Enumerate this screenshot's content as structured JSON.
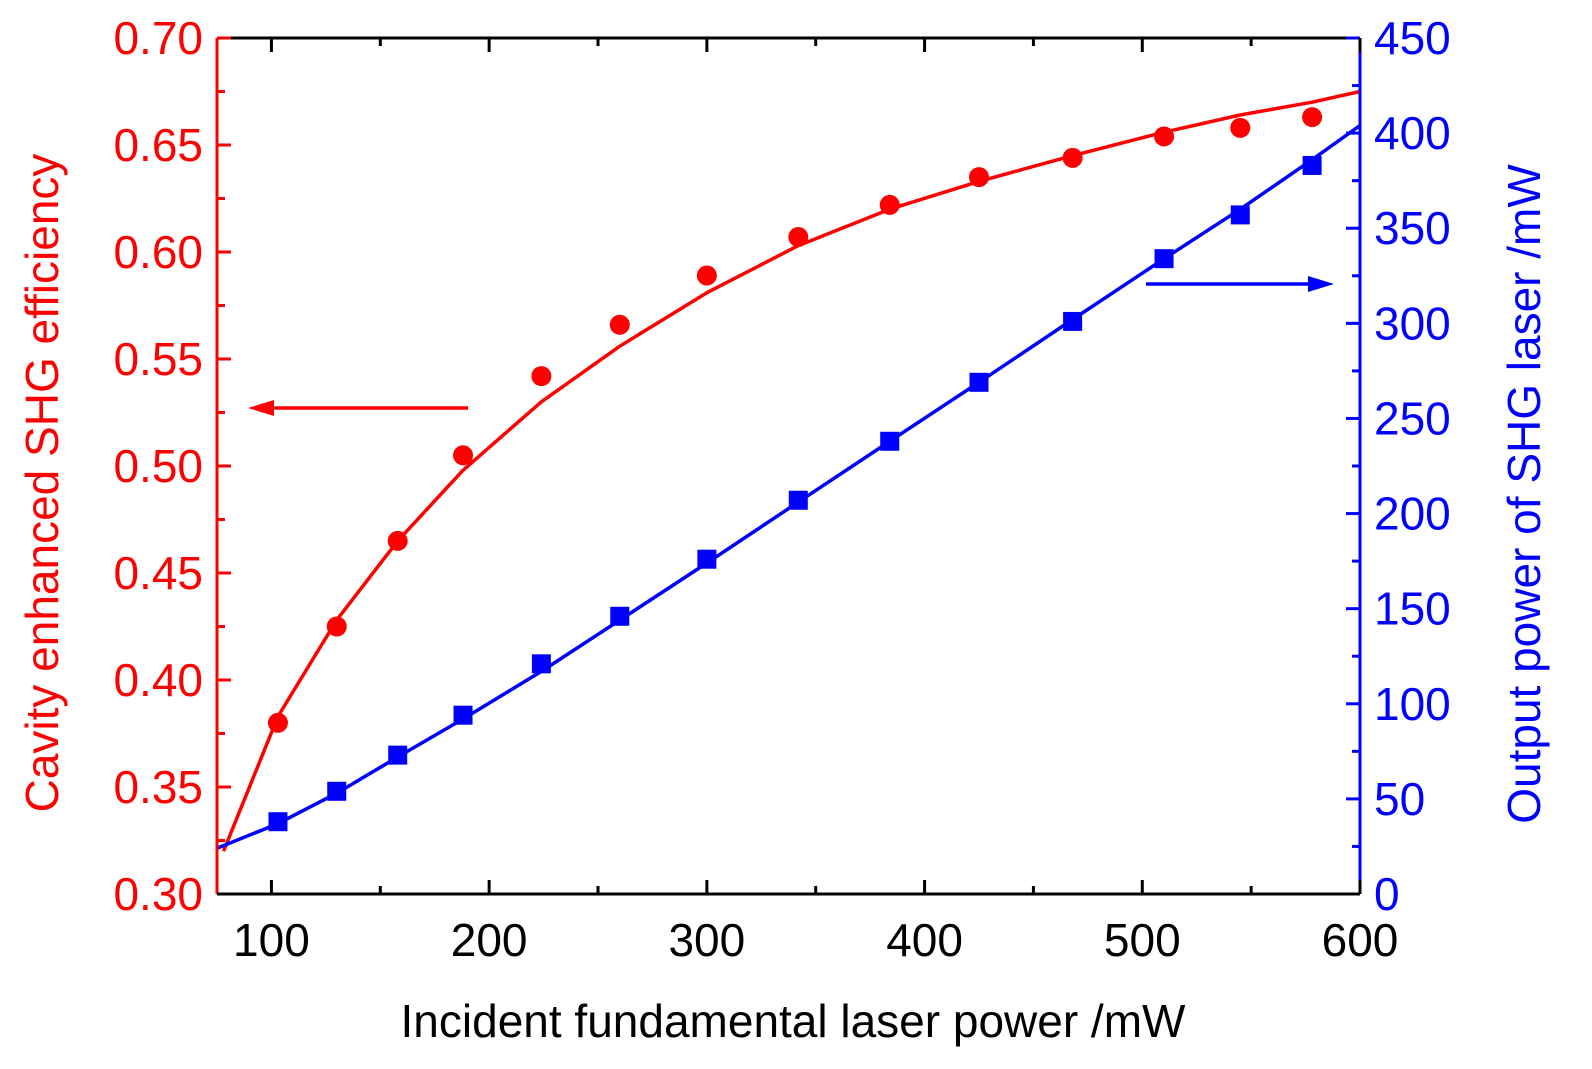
{
  "chart_data": {
    "type": "scatter",
    "title": "",
    "xlabel": "Incident fundamental laser power /mW",
    "xlim": [
      75,
      600
    ],
    "xticks": [
      100,
      200,
      300,
      400,
      500,
      600
    ],
    "xtick_labels": [
      "100",
      "200",
      "300",
      "400",
      "500",
      "600"
    ],
    "y_left": {
      "label": "Cavity enhanced SHG efficiency",
      "ylim": [
        0.3,
        0.7
      ],
      "ticks": [
        0.3,
        0.35,
        0.4,
        0.45,
        0.5,
        0.55,
        0.6,
        0.65,
        0.7
      ],
      "tick_labels": [
        "0.30",
        "0.35",
        "0.40",
        "0.45",
        "0.50",
        "0.55",
        "0.60",
        "0.65",
        "0.70"
      ],
      "color": "#ff0000"
    },
    "y_right": {
      "label": "Output power of SHG laser /mW",
      "ylim": [
        0,
        450
      ],
      "ticks": [
        0,
        50,
        100,
        150,
        200,
        250,
        300,
        350,
        400,
        450
      ],
      "tick_labels": [
        "0",
        "50",
        "100",
        "150",
        "200",
        "250",
        "300",
        "350",
        "400",
        "450"
      ],
      "color": "#0000ff"
    },
    "series": [
      {
        "name": "Cavity enhanced SHG efficiency",
        "axis": "left",
        "marker": "circle",
        "color": "#ff0000",
        "x": [
          103,
          130,
          158,
          188,
          224,
          260,
          300,
          342,
          384,
          425,
          468,
          510,
          545,
          578
        ],
        "y": [
          0.38,
          0.425,
          0.465,
          0.505,
          0.542,
          0.566,
          0.589,
          0.607,
          0.622,
          0.635,
          0.644,
          0.654,
          0.658,
          0.663
        ]
      },
      {
        "name": "Output power of SHG laser",
        "axis": "right",
        "marker": "square",
        "color": "#0000ff",
        "x": [
          103,
          130,
          158,
          188,
          224,
          260,
          300,
          342,
          384,
          425,
          468,
          510,
          545,
          578
        ],
        "y": [
          38,
          54,
          73,
          94,
          121,
          146,
          176,
          207,
          238,
          269,
          301,
          334,
          357,
          383
        ]
      }
    ],
    "fits": [
      {
        "name": "efficiency fit",
        "axis": "left",
        "color": "#ff0000",
        "x": [
          78,
          103,
          130,
          158,
          188,
          224,
          260,
          300,
          342,
          384,
          425,
          468,
          510,
          545,
          578,
          600
        ],
        "y": [
          0.32,
          0.383,
          0.428,
          0.465,
          0.498,
          0.53,
          0.556,
          0.581,
          0.603,
          0.62,
          0.633,
          0.645,
          0.656,
          0.664,
          0.67,
          0.675
        ]
      },
      {
        "name": "output power fit",
        "axis": "right",
        "color": "#0000ff",
        "x": [
          75,
          103,
          130,
          158,
          188,
          224,
          260,
          300,
          342,
          384,
          425,
          468,
          510,
          545,
          578,
          600
        ],
        "y": [
          24,
          37,
          53,
          72,
          92,
          117,
          144,
          174,
          206,
          238,
          269,
          302,
          334,
          360,
          386,
          404
        ]
      }
    ],
    "annotations": [
      {
        "type": "arrow",
        "points_to": "left axis",
        "color": "#ff0000",
        "from": [
          0.52,
          0.526
        ],
        "to": [
          0.09,
          0.526
        ],
        "axis": "left"
      },
      {
        "type": "arrow",
        "points_to": "right axis",
        "color": "#0000ff",
        "from": [
          503,
          321
        ],
        "to": [
          595,
          321
        ],
        "axis": "right"
      }
    ]
  }
}
